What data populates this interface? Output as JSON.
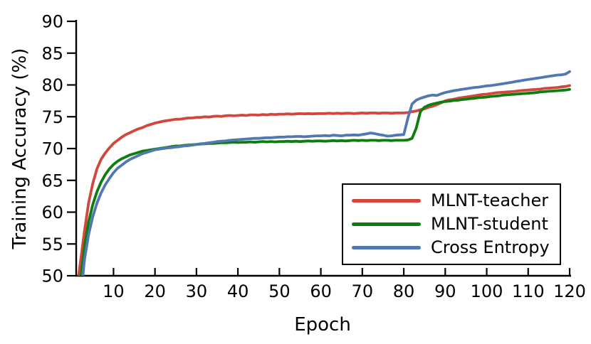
{
  "chart_data": {
    "type": "line",
    "title": "",
    "xlabel": "Epoch",
    "ylabel": "Training Accuracy (%)",
    "xlim": [
      1,
      120
    ],
    "ylim": [
      50,
      90
    ],
    "x_ticks": [
      10,
      20,
      30,
      40,
      50,
      60,
      70,
      80,
      90,
      100,
      110,
      120
    ],
    "y_ticks": [
      50,
      55,
      60,
      65,
      70,
      75,
      80,
      85,
      90
    ],
    "grid": false,
    "legend_position": "lower right",
    "axis_color": "#000000",
    "epochs": [
      1,
      2,
      3,
      4,
      5,
      6,
      7,
      8,
      9,
      10,
      11,
      12,
      13,
      14,
      15,
      16,
      17,
      18,
      19,
      20,
      21,
      22,
      23,
      24,
      25,
      26,
      27,
      28,
      29,
      30,
      31,
      32,
      33,
      34,
      35,
      36,
      37,
      38,
      39,
      40,
      41,
      42,
      43,
      44,
      45,
      46,
      47,
      48,
      49,
      50,
      51,
      52,
      53,
      54,
      55,
      56,
      57,
      58,
      59,
      60,
      61,
      62,
      63,
      64,
      65,
      66,
      67,
      68,
      69,
      70,
      71,
      72,
      73,
      74,
      75,
      76,
      77,
      78,
      79,
      80,
      81,
      82,
      83,
      84,
      85,
      86,
      87,
      88,
      89,
      90,
      91,
      92,
      93,
      94,
      95,
      96,
      97,
      98,
      99,
      100,
      101,
      102,
      103,
      104,
      105,
      106,
      107,
      108,
      109,
      110,
      111,
      112,
      113,
      114,
      115,
      116,
      117,
      118,
      119,
      120
    ],
    "series": [
      {
        "name": "MLNT-teacher",
        "color": "#d2473c",
        "y": [
          47.0,
          52.0,
          57.0,
          61.5,
          64.5,
          66.8,
          68.3,
          69.3,
          70.1,
          70.8,
          71.3,
          71.8,
          72.2,
          72.5,
          72.8,
          73.1,
          73.3,
          73.6,
          73.8,
          74.0,
          74.15,
          74.3,
          74.4,
          74.5,
          74.6,
          74.6,
          74.7,
          74.8,
          74.8,
          74.9,
          74.9,
          75.0,
          74.95,
          75.05,
          75.1,
          75.05,
          75.15,
          75.2,
          75.15,
          75.2,
          75.25,
          75.2,
          75.3,
          75.3,
          75.25,
          75.35,
          75.3,
          75.4,
          75.35,
          75.4,
          75.4,
          75.45,
          75.4,
          75.45,
          75.5,
          75.45,
          75.5,
          75.45,
          75.5,
          75.5,
          75.5,
          75.55,
          75.5,
          75.55,
          75.5,
          75.55,
          75.55,
          75.5,
          75.55,
          75.6,
          75.55,
          75.6,
          75.6,
          75.55,
          75.6,
          75.6,
          75.55,
          75.6,
          75.6,
          75.6,
          75.65,
          75.8,
          75.9,
          76.1,
          76.25,
          76.5,
          76.65,
          76.9,
          77.2,
          77.5,
          77.65,
          77.75,
          77.9,
          78.0,
          78.1,
          78.2,
          78.3,
          78.4,
          78.5,
          78.55,
          78.65,
          78.75,
          78.8,
          78.85,
          78.9,
          78.95,
          79.0,
          79.1,
          79.15,
          79.2,
          79.25,
          79.3,
          79.35,
          79.45,
          79.5,
          79.55,
          79.6,
          79.7,
          79.75,
          79.9
        ]
      },
      {
        "name": "MLNT-student",
        "color": "#0d7d0d",
        "y": [
          43.0,
          49.0,
          54.5,
          58.5,
          61.2,
          63.2,
          64.7,
          65.9,
          66.8,
          67.5,
          68.0,
          68.4,
          68.7,
          69.0,
          69.2,
          69.4,
          69.6,
          69.7,
          69.8,
          69.9,
          70.0,
          70.1,
          70.2,
          70.3,
          70.4,
          70.4,
          70.5,
          70.55,
          70.6,
          70.65,
          70.7,
          70.75,
          70.8,
          70.8,
          70.85,
          70.9,
          70.9,
          70.95,
          71.0,
          70.95,
          71.0,
          71.0,
          71.05,
          71.0,
          71.05,
          71.1,
          71.05,
          71.1,
          71.05,
          71.1,
          71.1,
          71.15,
          71.1,
          71.15,
          71.1,
          71.15,
          71.2,
          71.15,
          71.2,
          71.2,
          71.15,
          71.2,
          71.25,
          71.2,
          71.25,
          71.2,
          71.25,
          71.3,
          71.25,
          71.3,
          71.25,
          71.3,
          71.3,
          71.25,
          71.3,
          71.3,
          71.25,
          71.3,
          71.3,
          71.3,
          71.35,
          71.6,
          73.2,
          75.8,
          76.5,
          76.8,
          77.0,
          77.15,
          77.3,
          77.4,
          77.45,
          77.55,
          77.6,
          77.7,
          77.75,
          77.85,
          77.9,
          78.0,
          78.05,
          78.1,
          78.2,
          78.25,
          78.3,
          78.4,
          78.45,
          78.5,
          78.55,
          78.6,
          78.65,
          78.7,
          78.75,
          78.8,
          78.9,
          78.95,
          79.0,
          79.05,
          79.1,
          79.15,
          79.2,
          79.3
        ]
      },
      {
        "name": "Cross Entropy",
        "color": "#5278b4",
        "y": [
          40.0,
          46.0,
          52.5,
          56.5,
          59.3,
          61.4,
          63.0,
          64.3,
          65.3,
          66.2,
          66.9,
          67.4,
          67.9,
          68.3,
          68.6,
          68.9,
          69.2,
          69.4,
          69.6,
          69.8,
          69.9,
          70.0,
          70.1,
          70.15,
          70.25,
          70.3,
          70.4,
          70.45,
          70.55,
          70.65,
          70.75,
          70.8,
          70.9,
          71.0,
          71.1,
          71.15,
          71.2,
          71.3,
          71.35,
          71.4,
          71.45,
          71.5,
          71.55,
          71.6,
          71.6,
          71.65,
          71.7,
          71.7,
          71.75,
          71.8,
          71.8,
          71.85,
          71.85,
          71.9,
          71.9,
          71.85,
          71.9,
          71.95,
          72.0,
          72.0,
          72.05,
          72.0,
          72.1,
          72.05,
          72.0,
          72.1,
          72.1,
          72.15,
          72.1,
          72.2,
          72.3,
          72.45,
          72.35,
          72.2,
          72.1,
          71.95,
          72.0,
          72.1,
          72.15,
          72.2,
          74.8,
          77.0,
          77.6,
          77.9,
          78.1,
          78.3,
          78.4,
          78.35,
          78.6,
          78.8,
          78.95,
          79.1,
          79.2,
          79.3,
          79.4,
          79.5,
          79.6,
          79.65,
          79.75,
          79.85,
          79.9,
          80.0,
          80.1,
          80.2,
          80.3,
          80.4,
          80.55,
          80.65,
          80.75,
          80.85,
          80.95,
          81.05,
          81.15,
          81.25,
          81.35,
          81.45,
          81.55,
          81.6,
          81.7,
          82.1
        ]
      }
    ]
  }
}
